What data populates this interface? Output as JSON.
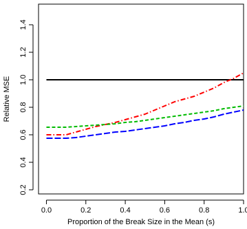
{
  "chart_data": {
    "type": "line",
    "title": "",
    "xlabel": "Proportion of the Break Size in the Mean (s)",
    "ylabel": "Relative MSE",
    "xlim": [
      -0.04,
      1.0
    ],
    "ylim": [
      0.17,
      1.55
    ],
    "x_ticks": [
      0.0,
      0.2,
      0.4,
      0.6,
      0.8,
      1.0
    ],
    "x_tick_labels": [
      "0.0",
      "0.2",
      "0.4",
      "0.6",
      "0.8",
      "1.0"
    ],
    "y_ticks": [
      0.2,
      0.4,
      0.6,
      0.8,
      1.0,
      1.2,
      1.4
    ],
    "y_tick_labels": [
      "0.2",
      "0.4",
      "0.6",
      "0.8",
      "1.0",
      "1.2",
      "1.4"
    ],
    "grid": false,
    "legend": "none",
    "series": [
      {
        "color": "#000000",
        "dash": "solid",
        "x": [
          0.0,
          1.0
        ],
        "y": [
          1.0,
          1.0
        ]
      },
      {
        "color": "#ff0000",
        "dash": "dashdot",
        "x": [
          0.0,
          0.05,
          0.1,
          0.15,
          0.2,
          0.25,
          0.3,
          0.35,
          0.4,
          0.45,
          0.5,
          0.55,
          0.6,
          0.65,
          0.7,
          0.75,
          0.8,
          0.85,
          0.9,
          0.95,
          1.0
        ],
        "y": [
          0.6,
          0.6,
          0.6,
          0.62,
          0.64,
          0.66,
          0.675,
          0.69,
          0.71,
          0.73,
          0.75,
          0.78,
          0.81,
          0.84,
          0.86,
          0.88,
          0.91,
          0.94,
          0.98,
          1.01,
          1.05
        ]
      },
      {
        "color": "#00bb00",
        "dash": "dashed",
        "x": [
          0.0,
          0.05,
          0.1,
          0.15,
          0.2,
          0.25,
          0.3,
          0.35,
          0.4,
          0.45,
          0.5,
          0.55,
          0.6,
          0.65,
          0.7,
          0.75,
          0.8,
          0.85,
          0.9,
          0.95,
          1.0
        ],
        "y": [
          0.655,
          0.655,
          0.655,
          0.66,
          0.665,
          0.67,
          0.675,
          0.68,
          0.69,
          0.695,
          0.705,
          0.715,
          0.725,
          0.735,
          0.745,
          0.755,
          0.765,
          0.775,
          0.79,
          0.8,
          0.81
        ]
      },
      {
        "color": "#0000ff",
        "dash": "longdash",
        "x": [
          0.0,
          0.05,
          0.1,
          0.15,
          0.2,
          0.25,
          0.3,
          0.35,
          0.4,
          0.45,
          0.5,
          0.55,
          0.6,
          0.65,
          0.7,
          0.75,
          0.8,
          0.85,
          0.9,
          0.95,
          1.0
        ],
        "y": [
          0.575,
          0.575,
          0.575,
          0.58,
          0.59,
          0.6,
          0.61,
          0.62,
          0.625,
          0.635,
          0.645,
          0.655,
          0.665,
          0.68,
          0.69,
          0.705,
          0.715,
          0.73,
          0.75,
          0.765,
          0.78
        ]
      }
    ]
  }
}
